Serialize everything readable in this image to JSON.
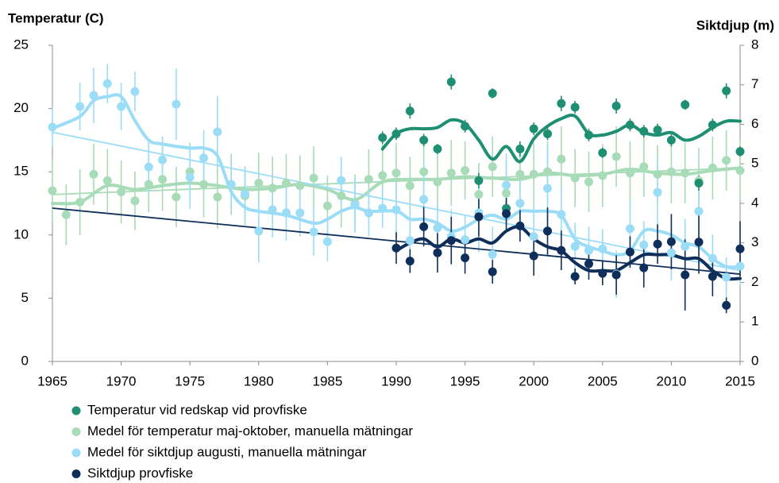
{
  "chart_data": {
    "type": "line",
    "y_title": "Temperatur (C)",
    "y2_title": "Siktdjup (m)",
    "xlim": [
      1965,
      2015
    ],
    "xticks": [
      1965,
      1970,
      1975,
      1980,
      1985,
      1990,
      1995,
      2000,
      2005,
      2010,
      2015
    ],
    "ylim": [
      0,
      25
    ],
    "yticks": [
      0,
      5,
      10,
      15,
      20,
      25
    ],
    "y2lim": [
      0,
      8
    ],
    "y2ticks": [
      0,
      1,
      2,
      3,
      4,
      5,
      6,
      7,
      8
    ],
    "legend": "bottom",
    "grid": false,
    "series": [
      {
        "name": "Temperatur vid redskap vid provfiske",
        "color": "#1e8f72",
        "axis": "y",
        "x": [
          1989,
          1990,
          1991,
          1992,
          1993,
          1994,
          1995,
          1996,
          1997,
          1998,
          1999,
          2000,
          2001,
          2002,
          2003,
          2004,
          2005,
          2006,
          2007,
          2008,
          2009,
          2010,
          2011,
          2012,
          2013,
          2014,
          2015
        ],
        "values": [
          17.7,
          18.0,
          19.8,
          17.5,
          16.8,
          22.1,
          18.6,
          14.3,
          21.2,
          12.1,
          16.8,
          18.4,
          18.0,
          20.4,
          20.1,
          17.9,
          16.5,
          20.2,
          18.7,
          18.2,
          18.3,
          17.5,
          20.3,
          14.1,
          18.7,
          21.4,
          16.6
        ],
        "errors": [
          0.5,
          0.5,
          0.6,
          0.5,
          0.4,
          0.6,
          0.5,
          0.6,
          0.4,
          0.6,
          0.6,
          0.5,
          0.5,
          0.6,
          0.5,
          0.5,
          0.4,
          0.6,
          0.5,
          0.5,
          0.5,
          0.5,
          0.4,
          0.6,
          0.5,
          0.6,
          0.4
        ],
        "smooth": {
          "x": [
            1989,
            1990,
            1991,
            1992,
            1993,
            1994,
            1995,
            1996,
            1997,
            1998,
            1999,
            2000,
            2001,
            2002,
            2003,
            2004,
            2005,
            2006,
            2007,
            2008,
            2009,
            2010,
            2011,
            2012,
            2013,
            2014,
            2015
          ],
          "values": [
            16.8,
            18.0,
            18.4,
            18.4,
            18.5,
            19.1,
            18.8,
            17.5,
            16.0,
            17.0,
            15.8,
            17.6,
            18.6,
            19.2,
            19.4,
            18.0,
            17.9,
            18.2,
            18.7,
            18.1,
            17.9,
            18.1,
            17.5,
            17.8,
            18.5,
            19.0,
            19.0
          ]
        }
      },
      {
        "name": "Medel för temperatur maj-oktober, manuella mätningar",
        "color": "#a8dbb8",
        "axis": "y",
        "x": [
          1965,
          1966,
          1967,
          1968,
          1969,
          1970,
          1971,
          1972,
          1973,
          1974,
          1975,
          1976,
          1977,
          1978,
          1979,
          1980,
          1981,
          1982,
          1983,
          1984,
          1985,
          1986,
          1987,
          1988,
          1989,
          1990,
          1991,
          1992,
          1993,
          1994,
          1995,
          1996,
          1997,
          1998,
          1999,
          2000,
          2001,
          2002,
          2003,
          2004,
          2005,
          2006,
          2007,
          2008,
          2009,
          2010,
          2011,
          2012,
          2013,
          2014,
          2015
        ],
        "values": [
          13.5,
          11.6,
          12.6,
          14.8,
          14.3,
          13.4,
          12.7,
          14.0,
          14.4,
          13.0,
          15.0,
          14.0,
          13.0,
          14.0,
          13.1,
          14.1,
          13.7,
          14.1,
          13.9,
          14.5,
          12.3,
          13.1,
          12.5,
          14.4,
          14.7,
          14.9,
          13.9,
          15.0,
          14.2,
          14.9,
          15.1,
          13.2,
          15.4,
          13.3,
          14.8,
          14.8,
          15.0,
          16.0,
          14.5,
          14.2,
          14.7,
          16.2,
          14.9,
          15.4,
          14.8,
          15.0,
          14.9,
          14.3,
          15.3,
          15.9,
          15.1
        ],
        "errors": [
          2.5,
          2.4,
          2.6,
          2.4,
          2.5,
          2.5,
          2.3,
          2.2,
          2.5,
          2.4,
          2.3,
          2.6,
          2.5,
          2.4,
          2.3,
          2.4,
          2.5,
          2.3,
          2.4,
          2.5,
          2.4,
          2.5,
          2.3,
          2.4,
          2.5,
          2.4,
          2.3,
          2.5,
          2.4,
          2.6,
          2.3,
          2.5,
          2.4,
          2.4,
          2.5,
          2.5,
          2.4,
          2.6,
          2.3,
          2.4,
          2.5,
          2.4,
          2.5,
          2.4,
          2.3,
          2.5,
          2.4,
          2.6,
          2.5,
          2.4,
          2.4
        ],
        "smooth": {
          "x": [
            1965,
            1967,
            1969,
            1971,
            1973,
            1975,
            1977,
            1979,
            1981,
            1983,
            1985,
            1987,
            1989,
            1991,
            1993,
            1995,
            1997,
            1999,
            2001,
            2003,
            2005,
            2007,
            2009,
            2011,
            2013,
            2015
          ],
          "values": [
            12.5,
            12.6,
            13.9,
            13.6,
            13.9,
            14.1,
            13.9,
            13.6,
            13.7,
            14.0,
            13.6,
            12.8,
            14.2,
            14.4,
            14.4,
            14.6,
            14.5,
            14.4,
            14.9,
            14.7,
            14.8,
            15.2,
            14.9,
            14.8,
            15.1,
            15.3
          ]
        },
        "trend": {
          "x": [
            1965,
            2015
          ],
          "values": [
            13.2,
            15.3
          ]
        }
      },
      {
        "name": "Medel för siktdjup augusti, manuella mätningar",
        "color": "#9bdcf7",
        "axis": "y2",
        "x": [
          1965,
          1967,
          1968,
          1969,
          1970,
          1971,
          1972,
          1973,
          1974,
          1975,
          1976,
          1977,
          1978,
          1979,
          1980,
          1981,
          1982,
          1983,
          1984,
          1985,
          1986,
          1987,
          1988,
          1989,
          1990,
          1991,
          1992,
          1993,
          1994,
          1995,
          1996,
          1997,
          1998,
          1999,
          2000,
          2001,
          2002,
          2003,
          2004,
          2005,
          2006,
          2007,
          2008,
          2009,
          2010,
          2011,
          2012,
          2013,
          2014,
          2015
        ],
        "values": [
          5.93,
          6.45,
          6.73,
          7.03,
          6.45,
          6.83,
          4.92,
          5.1,
          6.51,
          4.66,
          5.15,
          5.81,
          4.48,
          4.24,
          3.3,
          3.84,
          3.76,
          3.76,
          3.28,
          3.03,
          4.58,
          3.96,
          3.76,
          3.88,
          3.84,
          3.06,
          4.1,
          3.38,
          3.16,
          3.08,
          3.76,
          2.71,
          4.46,
          4.0,
          3.16,
          4.38,
          3.72,
          2.91,
          2.81,
          2.85,
          2.21,
          3.36,
          2.95,
          4.28,
          2.75,
          2.91,
          3.8,
          2.61,
          2.13,
          2.41
        ],
        "errors": [
          0.5,
          0.6,
          0.7,
          0.5,
          0.6,
          0.5,
          0.7,
          0.6,
          0.9,
          0.8,
          0.7,
          0.9,
          0.6,
          0.7,
          0.8,
          0.7,
          0.7,
          0.6,
          0.6,
          0.5,
          0.6,
          0.7,
          0.6,
          0.5,
          0.7,
          0.8,
          0.9,
          0.6,
          0.7,
          0.6,
          1.0,
          0.7,
          0.8,
          0.6,
          0.8,
          1.1,
          0.7,
          0.6,
          0.6,
          0.5,
          0.6,
          0.7,
          0.6,
          0.9,
          0.7,
          0.7,
          0.8,
          0.6,
          0.5,
          0.5
        ],
        "smooth": {
          "x": [
            1965,
            1967,
            1968,
            1969,
            1970,
            1971,
            1972,
            1973,
            1975,
            1976,
            1977,
            1978,
            1979,
            1980,
            1982,
            1984,
            1985,
            1986,
            1987,
            1988,
            1990,
            1991,
            1992,
            1993,
            1994,
            1995,
            1996,
            1997,
            1998,
            1999,
            2000,
            2001,
            2002,
            2003,
            2004,
            2005,
            2006,
            2007,
            2008,
            2009,
            2010,
            2011,
            2012,
            2013,
            2014,
            2015
          ],
          "values": [
            5.9,
            6.2,
            6.6,
            6.7,
            6.7,
            6.1,
            5.6,
            5.5,
            5.4,
            5.4,
            5.2,
            4.3,
            3.9,
            3.8,
            3.7,
            3.5,
            3.6,
            3.8,
            3.9,
            3.8,
            3.8,
            3.6,
            3.6,
            3.5,
            3.3,
            3.4,
            3.6,
            3.7,
            3.6,
            3.8,
            3.8,
            3.8,
            3.7,
            3.1,
            2.9,
            2.8,
            2.7,
            2.8,
            3.3,
            3.3,
            3.2,
            3.0,
            2.9,
            2.6,
            2.4,
            2.4
          ]
        },
        "trend": {
          "x": [
            1965,
            2015
          ],
          "values": [
            5.8,
            2.3
          ]
        }
      },
      {
        "name": "Siktdjup provfiske",
        "color": "#0f2f5a",
        "axis": "y2",
        "x": [
          1990,
          1991,
          1992,
          1993,
          1994,
          1995,
          1996,
          1997,
          1998,
          1999,
          2000,
          2001,
          2002,
          2003,
          2004,
          2005,
          2006,
          2007,
          2008,
          2009,
          2010,
          2011,
          2012,
          2013,
          2014,
          2015
        ],
        "values": [
          2.87,
          2.54,
          3.41,
          2.75,
          3.06,
          2.62,
          3.66,
          2.27,
          3.74,
          3.43,
          2.67,
          3.3,
          2.81,
          2.15,
          2.47,
          2.23,
          2.19,
          2.77,
          2.37,
          2.97,
          3.03,
          2.19,
          3.02,
          2.15,
          1.42,
          2.85
        ],
        "errors": [
          0.4,
          0.3,
          0.5,
          0.5,
          0.6,
          0.4,
          0.5,
          0.3,
          0.4,
          0.4,
          0.5,
          0.6,
          0.5,
          0.2,
          0.4,
          0.3,
          0.5,
          0.4,
          0.5,
          0.5,
          0.7,
          0.9,
          0.8,
          0.5,
          0.2,
          0.7
        ],
        "smooth": {
          "x": [
            1990,
            1991,
            1992,
            1993,
            1994,
            1995,
            1996,
            1997,
            1998,
            1999,
            2000,
            2001,
            2002,
            2003,
            2004,
            2005,
            2006,
            2007,
            2008,
            2009,
            2010,
            2011,
            2012,
            2013,
            2014,
            2015
          ],
          "values": [
            2.8,
            3.0,
            3.1,
            2.9,
            3.1,
            3.0,
            3.1,
            3.0,
            3.3,
            3.4,
            3.1,
            2.9,
            2.8,
            2.5,
            2.3,
            2.3,
            2.3,
            2.5,
            2.7,
            2.7,
            2.7,
            2.6,
            2.6,
            2.3,
            2.1,
            2.1
          ]
        },
        "trend": {
          "x": [
            1965,
            2015
          ],
          "values": [
            3.88,
            2.21
          ]
        }
      }
    ]
  }
}
